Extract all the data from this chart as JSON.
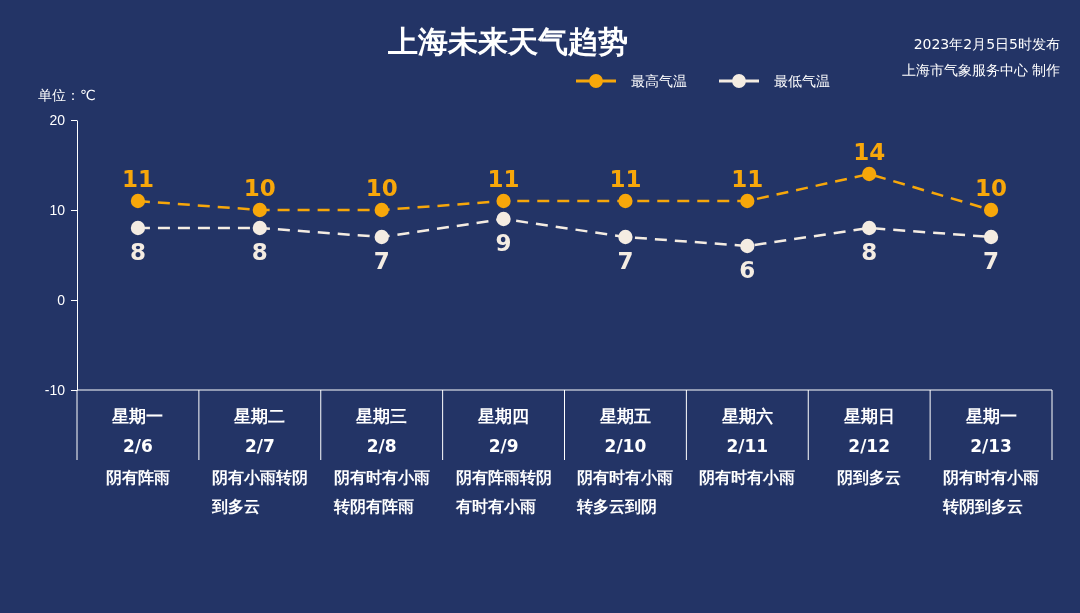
{
  "chart_data": {
    "type": "line",
    "title": "上海未来天气趋势",
    "ylabel": "单位：℃",
    "annotations": [
      "2023年2月5日5时发布",
      "上海市气象服务中心 制作"
    ],
    "categories": [
      "星期一\n2/6\n阴有阵雨",
      "星期二\n2/7\n阴有小雨转阴到多云",
      "星期三\n2/8\n阴有时有小雨转阴有阵雨",
      "星期四\n2/9\n阴有阵雨转阴有时有小雨",
      "星期五\n2/10\n阴有时有小雨转多云到阴",
      "星期六\n2/11\n阴有时有小雨",
      "星期日\n2/12\n阴到多云",
      "星期一\n2/13\n阴有时有小雨转阴到多云"
    ],
    "series": [
      {
        "name": "最高气温",
        "color": "#f7a70a",
        "values": [
          11,
          10,
          10,
          11,
          11,
          11,
          14,
          10
        ]
      },
      {
        "name": "最低气温",
        "color": "#f4ece2",
        "values": [
          8,
          8,
          7,
          9,
          7,
          6,
          8,
          7
        ]
      }
    ],
    "ylim": [
      -10,
      20
    ],
    "yticks": [
      -10,
      0,
      10,
      20
    ],
    "legend": "top right",
    "marker": "circle",
    "line_style": "dashed",
    "data_labels": true
  }
}
